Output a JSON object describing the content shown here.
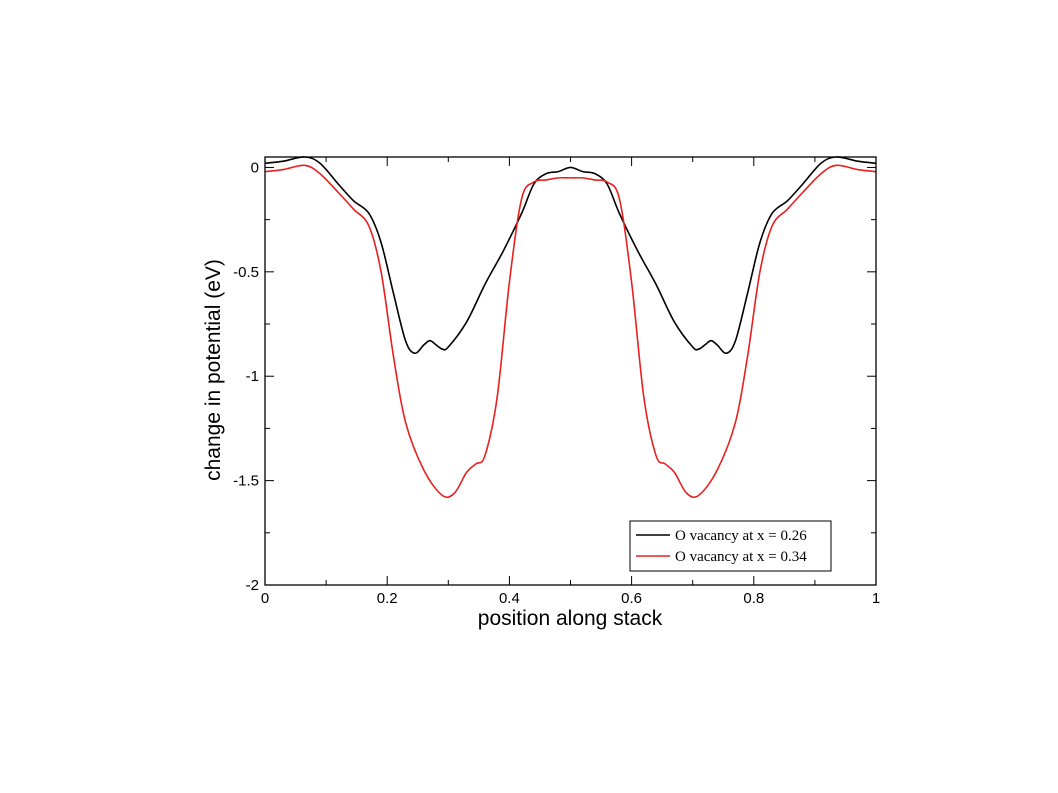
{
  "chart_data": {
    "type": "line",
    "xlabel": "position along stack",
    "ylabel": "change in potential (eV)",
    "xlim": [
      0,
      1
    ],
    "ylim": [
      -2,
      0.05
    ],
    "x_ticks": [
      0,
      0.2,
      0.4,
      0.6,
      0.8,
      1
    ],
    "x_tick_labels": [
      "0",
      "0.2",
      "0.4",
      "0.6",
      "0.8",
      "1"
    ],
    "y_ticks": [
      0,
      -0.5,
      -1,
      -1.5,
      -2
    ],
    "y_tick_labels": [
      "0",
      "-0.5",
      "-1",
      "-1.5",
      "-2"
    ],
    "grid": false,
    "legend_position": "lower-right",
    "series": [
      {
        "name": "O vacancy at x = 0.26",
        "color": "#000000",
        "x": [
          0,
          0.03,
          0.065,
          0.09,
          0.12,
          0.145,
          0.17,
          0.19,
          0.21,
          0.23,
          0.245,
          0.26,
          0.27,
          0.28,
          0.29,
          0.3,
          0.33,
          0.36,
          0.39,
          0.42,
          0.44,
          0.46,
          0.48,
          0.5,
          0.52,
          0.54,
          0.56,
          0.58,
          0.61,
          0.64,
          0.67,
          0.7,
          0.71,
          0.72,
          0.73,
          0.74,
          0.755,
          0.77,
          0.79,
          0.81,
          0.83,
          0.855,
          0.88,
          0.91,
          0.935,
          0.97,
          1.0
        ],
        "y": [
          0.02,
          0.03,
          0.05,
          0.02,
          -0.08,
          -0.16,
          -0.22,
          -0.36,
          -0.6,
          -0.83,
          -0.89,
          -0.85,
          -0.83,
          -0.85,
          -0.87,
          -0.86,
          -0.74,
          -0.56,
          -0.4,
          -0.22,
          -0.08,
          -0.03,
          -0.02,
          0.0,
          -0.02,
          -0.03,
          -0.08,
          -0.22,
          -0.4,
          -0.56,
          -0.74,
          -0.86,
          -0.87,
          -0.85,
          -0.83,
          -0.85,
          -0.89,
          -0.83,
          -0.6,
          -0.36,
          -0.22,
          -0.16,
          -0.08,
          0.02,
          0.05,
          0.03,
          0.02
        ]
      },
      {
        "name": "O vacancy at x = 0.34",
        "color": "#e8201f",
        "x": [
          0,
          0.03,
          0.065,
          0.09,
          0.12,
          0.145,
          0.17,
          0.19,
          0.21,
          0.23,
          0.26,
          0.29,
          0.31,
          0.33,
          0.345,
          0.36,
          0.38,
          0.4,
          0.42,
          0.44,
          0.46,
          0.48,
          0.5,
          0.52,
          0.54,
          0.56,
          0.58,
          0.6,
          0.62,
          0.64,
          0.655,
          0.67,
          0.69,
          0.71,
          0.74,
          0.77,
          0.79,
          0.81,
          0.83,
          0.855,
          0.88,
          0.91,
          0.935,
          0.97,
          1.0
        ],
        "y": [
          -0.02,
          -0.01,
          0.01,
          -0.03,
          -0.12,
          -0.2,
          -0.28,
          -0.5,
          -0.9,
          -1.22,
          -1.45,
          -1.57,
          -1.56,
          -1.46,
          -1.42,
          -1.38,
          -1.1,
          -0.55,
          -0.15,
          -0.07,
          -0.06,
          -0.05,
          -0.05,
          -0.05,
          -0.06,
          -0.07,
          -0.15,
          -0.55,
          -1.1,
          -1.38,
          -1.42,
          -1.46,
          -1.56,
          -1.57,
          -1.45,
          -1.22,
          -0.9,
          -0.5,
          -0.28,
          -0.2,
          -0.12,
          -0.03,
          0.01,
          -0.01,
          -0.02
        ]
      }
    ]
  }
}
